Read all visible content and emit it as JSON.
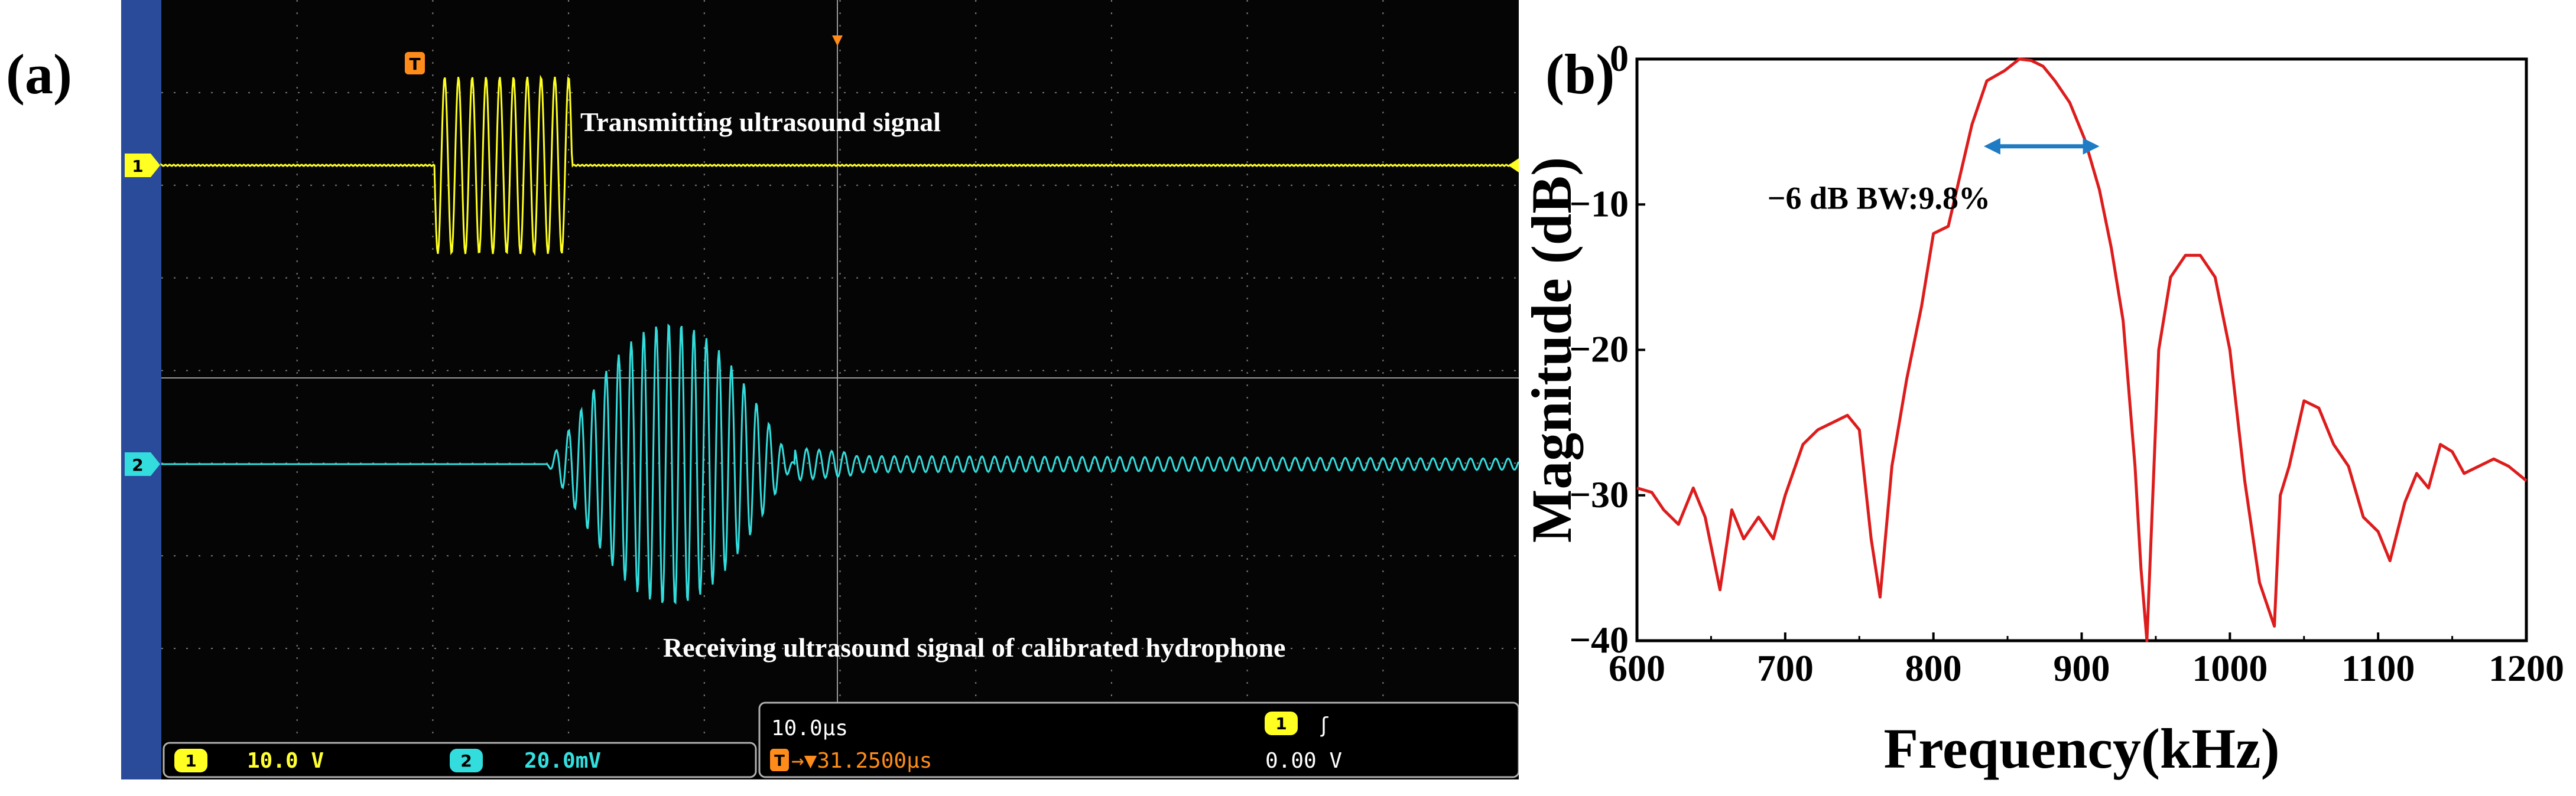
{
  "panels": {
    "a_label": "(a)",
    "b_label": "(b)"
  },
  "chart_data": [
    {
      "type": "line",
      "panel": "(a)",
      "annotations": [
        "Transmitting ultrasound signal",
        "Receiving ultrasound signal of calibrated hydrophone"
      ],
      "series": [
        {
          "marker": "1",
          "color": "#ffff22",
          "scale": "10.0 V",
          "waveform": "burst of ~10 cycles starting near trigger, then flat"
        },
        {
          "marker": "2",
          "color": "#33dddd",
          "scale": "20.0mV",
          "waveform": "delayed burst with spindle-shaped envelope, then low-amplitude ringing"
        }
      ],
      "status_bar": {
        "ch1_marker": "1",
        "ch1_scale": "10.0 V",
        "ch2_marker": "2",
        "ch2_scale": "20.0mV",
        "timebase": "10.0µs",
        "trigger_marker": "T",
        "trigger_position": "→▼31.2500µs",
        "trigger_source_marker": "1",
        "trigger_slope": "ʃ",
        "trigger_level": "0.00 V"
      },
      "colors": {
        "screen": "#050505",
        "left_border": "#2a4a9a",
        "grid": "#8a8a8a",
        "status_text": "#ffff33",
        "ch2_status_text": "#33e0e0",
        "time_text": "#ffffff",
        "trigger_text": "#ff8c1a"
      }
    },
    {
      "type": "line",
      "panel": "(b)",
      "xlabel": "Frequency(kHz)",
      "ylabel": "Magnitude (dB)",
      "xlim": [
        600,
        1200
      ],
      "ylim": [
        -40,
        0
      ],
      "xticks": [
        600,
        700,
        800,
        900,
        1000,
        1100,
        1200
      ],
      "yticks": [
        0,
        -10,
        -20,
        -30,
        -40
      ],
      "annotation": "−6 dB BW:9.8%",
      "bandwidth_arrow_khz": [
        834,
        912
      ],
      "line_color": "#dd1c1c",
      "arrow_color": "#1e7bc4",
      "x": [
        600,
        610,
        618,
        628,
        638,
        646,
        656,
        664,
        672,
        682,
        692,
        700,
        712,
        722,
        732,
        742,
        750,
        758,
        764,
        772,
        782,
        792,
        800,
        810,
        818,
        826,
        836,
        848,
        858,
        866,
        874,
        882,
        892,
        902,
        912,
        920,
        928,
        936,
        940,
        944,
        952,
        960,
        970,
        980,
        990,
        1000,
        1010,
        1020,
        1030,
        1034,
        1040,
        1050,
        1060,
        1070,
        1080,
        1090,
        1100,
        1108,
        1118,
        1126,
        1134,
        1142,
        1150,
        1158,
        1168,
        1178,
        1188,
        1200
      ],
      "y": [
        -29.5,
        -29.8,
        -31,
        -32,
        -29.5,
        -31.5,
        -36.5,
        -31,
        -33,
        -31.5,
        -33,
        -30,
        -26.5,
        -25.5,
        -25,
        -24.5,
        -25.5,
        -33,
        -37,
        -28,
        -22,
        -17,
        -12,
        -11.5,
        -8,
        -4.5,
        -1.5,
        -0.8,
        0,
        -0.1,
        -0.5,
        -1.5,
        -3,
        -5.5,
        -9,
        -13,
        -18,
        -28,
        -35,
        -40,
        -20,
        -15,
        -13.5,
        -13.5,
        -15,
        -20,
        -29,
        -36,
        -39,
        -30,
        -28,
        -23.5,
        -24,
        -26.5,
        -28,
        -31.5,
        -32.5,
        -34.5,
        -30.5,
        -28.5,
        -29.5,
        -26.5,
        -27,
        -28.5,
        -28,
        -27.5,
        -28,
        -29
      ]
    }
  ]
}
